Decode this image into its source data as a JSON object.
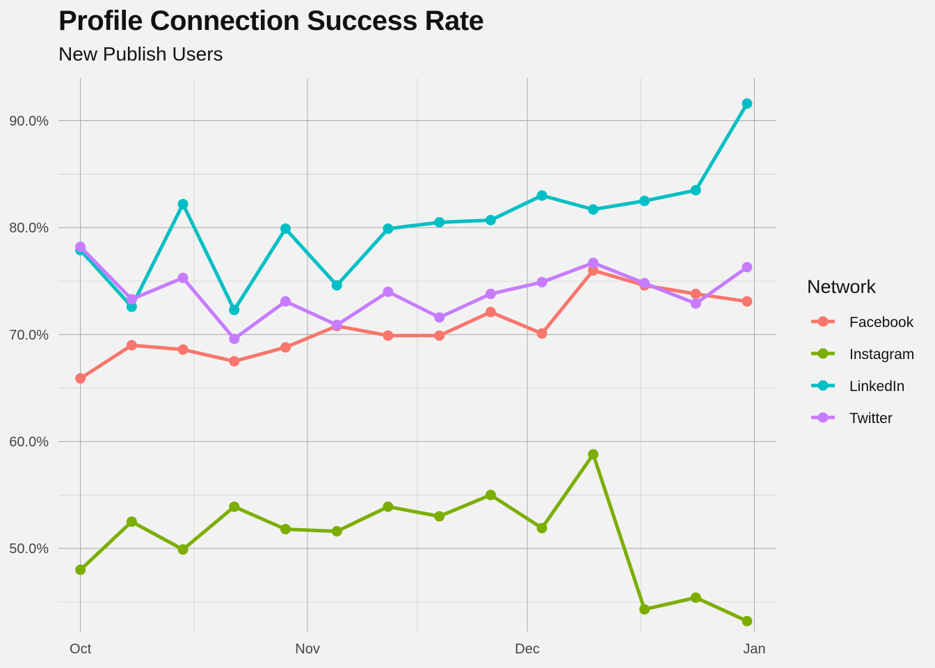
{
  "chart_data": {
    "type": "line",
    "title": "Profile Connection Success Rate",
    "subtitle": "New Publish Users",
    "xlabel": "",
    "ylabel": "",
    "x": [
      "2019-10-01",
      "2019-10-08",
      "2019-10-15",
      "2019-10-22",
      "2019-10-29",
      "2019-11-05",
      "2019-11-12",
      "2019-11-19",
      "2019-11-26",
      "2019-12-03",
      "2019-12-10",
      "2019-12-17",
      "2019-12-24",
      "2019-12-31"
    ],
    "x_ticks": [
      {
        "date": "2019-10-01",
        "label": "Oct"
      },
      {
        "date": "2019-11-01",
        "label": "Nov"
      },
      {
        "date": "2019-12-01",
        "label": "Dec"
      },
      {
        "date": "2020-01-01",
        "label": "Jan"
      }
    ],
    "x_range": [
      "2019-09-28",
      "2020-01-04"
    ],
    "y_ticks": [
      {
        "value": 0.5,
        "label": "50.0%"
      },
      {
        "value": 0.6,
        "label": "60.0%"
      },
      {
        "value": 0.7,
        "label": "70.0%"
      },
      {
        "value": 0.8,
        "label": "80.0%"
      },
      {
        "value": 0.9,
        "label": "90.0%"
      }
    ],
    "ylim": [
      0.422,
      0.94
    ],
    "grid": true,
    "legend": {
      "title": "Network",
      "position": "right"
    },
    "series": [
      {
        "name": "Facebook",
        "color": "#f8766d",
        "values": [
          0.659,
          0.69,
          0.686,
          0.675,
          0.688,
          0.708,
          0.699,
          0.699,
          0.721,
          0.701,
          0.76,
          0.746,
          0.738,
          0.731
        ]
      },
      {
        "name": "Instagram",
        "color": "#7cae00",
        "values": [
          0.48,
          0.525,
          0.499,
          0.539,
          0.518,
          0.516,
          0.539,
          0.53,
          0.55,
          0.519,
          0.588,
          0.443,
          0.454,
          0.432
        ]
      },
      {
        "name": "LinkedIn",
        "color": "#00bfc4",
        "values": [
          0.779,
          0.726,
          0.822,
          0.723,
          0.799,
          0.746,
          0.799,
          0.805,
          0.807,
          0.83,
          0.817,
          0.825,
          0.835,
          0.916
        ]
      },
      {
        "name": "Twitter",
        "color": "#c77cff",
        "values": [
          0.782,
          0.733,
          0.753,
          0.696,
          0.731,
          0.709,
          0.74,
          0.716,
          0.738,
          0.749,
          0.767,
          0.748,
          0.729,
          0.763
        ]
      }
    ]
  }
}
